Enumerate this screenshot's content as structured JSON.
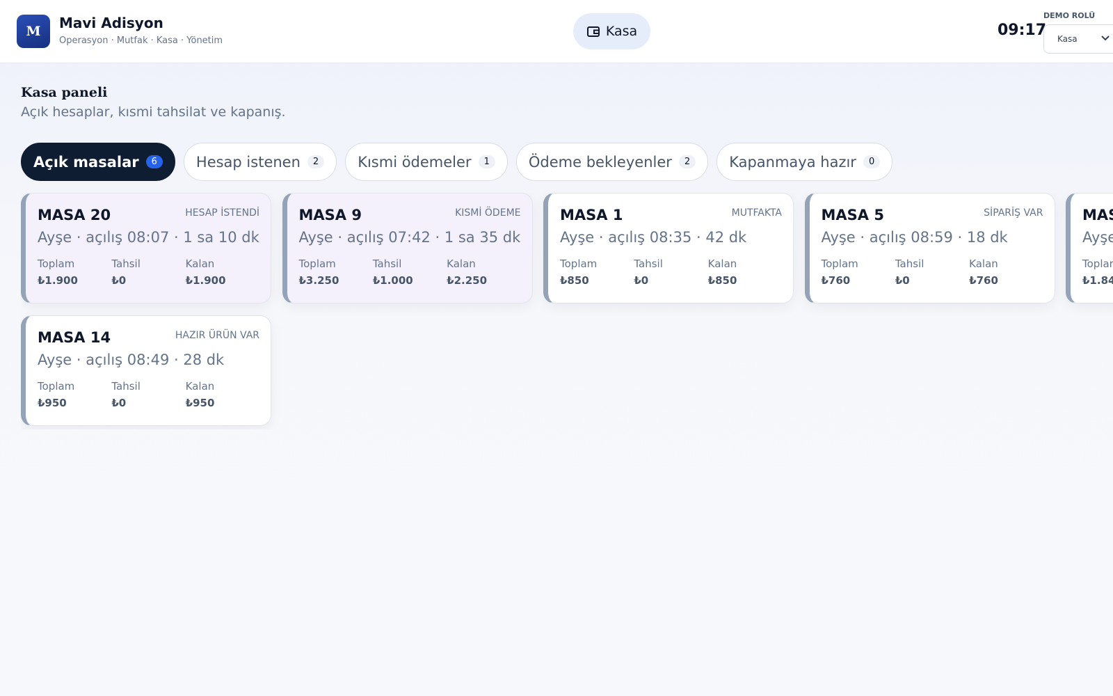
{
  "header": {
    "logo": "M",
    "title": "Mavi Adisyon",
    "subtitle": "Operasyon · Mutfak · Kasa · Yönetim",
    "nav_button": "Kasa",
    "time": "09:17",
    "role_label": "DEMO ROLÜ",
    "role_select": "Kasa"
  },
  "page": {
    "title": "Kasa paneli",
    "subtitle": "Açık hesaplar, kısmi tahsilat ve kapanış."
  },
  "tabs": [
    {
      "label": "Açık masalar",
      "count": 6
    },
    {
      "label": "Hesap istenen",
      "count": 2
    },
    {
      "label": "Kısmi ödemeler",
      "count": 1
    },
    {
      "label": "Ödeme bekleyenler",
      "count": 2
    },
    {
      "label": "Kapanmaya hazır",
      "count": 0
    }
  ],
  "cards": [
    {
      "table": "MASA 20",
      "status": "HESAP İSTENDİ",
      "meta": "Ayşe · açılış 08:07 · 1 sa 10 dk",
      "stats": [
        {
          "label": "Toplam",
          "value": "₺1.900"
        },
        {
          "label": "Tahsil",
          "value": "₺0"
        },
        {
          "label": "Kalan",
          "value": "₺1.900"
        }
      ]
    },
    {
      "table": "MASA 9",
      "status": "KISMİ ÖDEME",
      "meta": "Ayşe · açılış 07:42 · 1 sa 35 dk",
      "stats": [
        {
          "label": "Toplam",
          "value": "₺3.250"
        },
        {
          "label": "Tahsil",
          "value": "₺1.000"
        },
        {
          "label": "Kalan",
          "value": "₺2.250"
        }
      ]
    },
    {
      "table": "MASA 1",
      "status": "MUTFAKTA",
      "meta": "Ayşe · açılış 08:35 · 42 dk",
      "stats": [
        {
          "label": "Toplam",
          "value": "₺850"
        },
        {
          "label": "Tahsil",
          "value": "₺0"
        },
        {
          "label": "Kalan",
          "value": "₺850"
        }
      ]
    },
    {
      "table": "MASA 5",
      "status": "SİPARİŞ VAR",
      "meta": "Ayşe · açılış 08:59 · 18 dk",
      "stats": [
        {
          "label": "Toplam",
          "value": "₺760"
        },
        {
          "label": "Tahsil",
          "value": "₺0"
        },
        {
          "label": "Kalan",
          "value": "₺760"
        }
      ]
    },
    {
      "table": "MAS",
      "meta": "Ayşe",
      "stats": [
        {
          "label": "Toplar",
          "value": "₺1.84"
        }
      ]
    },
    {
      "table": "MASA 14",
      "status": "HAZIR ÜRÜN VAR",
      "meta": "Ayşe · açılış 08:49 · 28 dk",
      "stats": [
        {
          "label": "Toplam",
          "value": "₺950"
        },
        {
          "label": "Tahsil",
          "value": "₺0"
        },
        {
          "label": "Kalan",
          "value": "₺950"
        }
      ]
    }
  ]
}
